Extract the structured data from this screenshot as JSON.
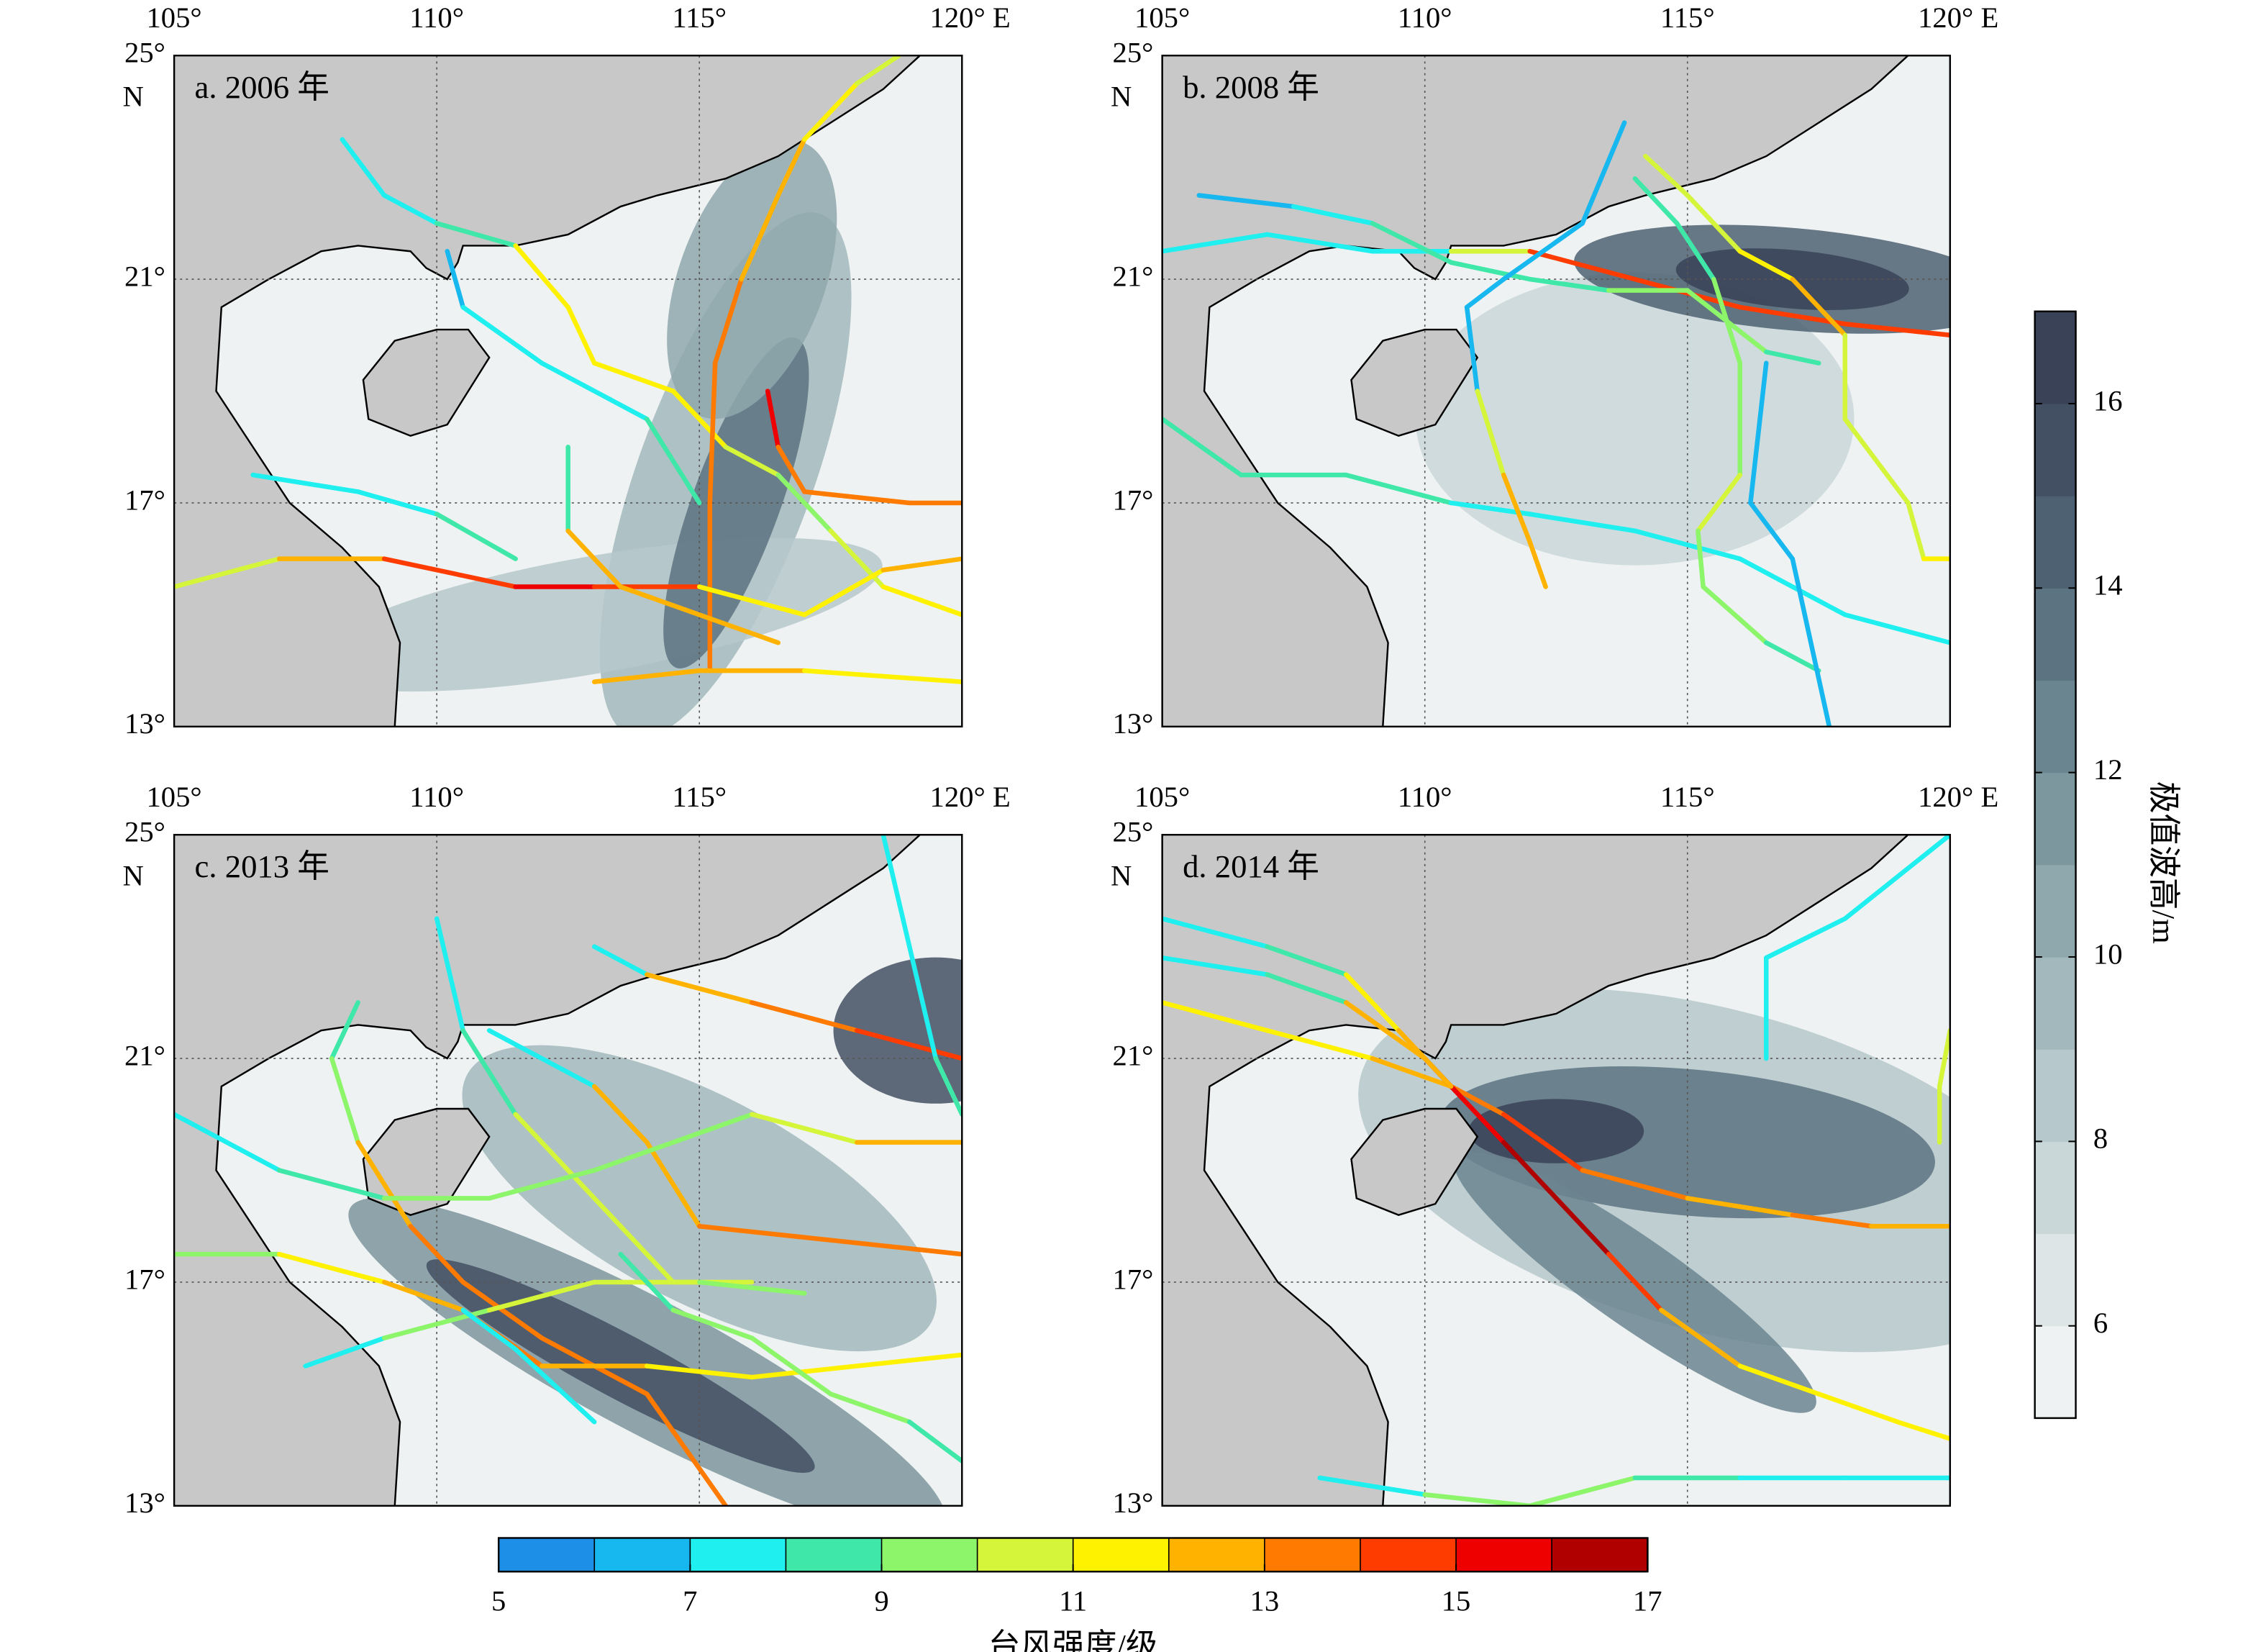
{
  "axes": {
    "xlim": [
      105,
      120
    ],
    "ylim": [
      13,
      25
    ],
    "xticks": [
      {
        "value": 105,
        "label": "105°"
      },
      {
        "value": 110,
        "label": "110°"
      },
      {
        "value": 115,
        "label": "115°"
      },
      {
        "value": 120,
        "label": "120° E"
      }
    ],
    "yticks": [
      {
        "value": 25,
        "label": "25°"
      },
      {
        "value": 21,
        "label": "21°"
      },
      {
        "value": 17,
        "label": "17°"
      },
      {
        "value": 13,
        "label": "13°"
      }
    ],
    "lat_hemisphere": "N",
    "grid": true
  },
  "panels": [
    {
      "label": "a. 2006 年",
      "tracks": [
        {
          "lon": [
            108.2,
            109,
            110,
            111.5,
            112.5,
            113,
            114.5,
            115.5,
            116.5,
            117.5,
            118.5,
            120
          ],
          "lat": [
            23.5,
            22.5,
            22,
            21.6,
            20.5,
            19.5,
            19,
            18,
            17.5,
            16.5,
            15.5,
            15
          ],
          "intensity": [
            7,
            7,
            8,
            11,
            11,
            11,
            11,
            10,
            9,
            10,
            11,
            12
          ]
        },
        {
          "lon": [
            110.2,
            110.5,
            112,
            114,
            115
          ],
          "lat": [
            21.5,
            20.5,
            19.5,
            18.5,
            17
          ],
          "intensity": [
            6,
            7,
            7,
            8,
            8
          ]
        },
        {
          "lon": [
            115.2,
            115.2,
            115.3,
            115.8,
            116.5,
            117,
            118,
            118.8
          ],
          "lat": [
            14,
            17,
            19.5,
            21,
            22.5,
            23.5,
            24.5,
            25
          ],
          "intensity": [
            13,
            13,
            13,
            12,
            12,
            11,
            10,
            9
          ]
        },
        {
          "lon": [
            105,
            107,
            109,
            111.5,
            113,
            115,
            117,
            118.5,
            120
          ],
          "lat": [
            15.5,
            16,
            16,
            15.5,
            15.5,
            15.5,
            15,
            15.8,
            16
          ],
          "intensity": [
            10,
            12,
            14,
            15,
            14,
            11,
            11,
            12,
            12
          ]
        },
        {
          "lon": [
            106.5,
            108.5,
            110,
            111.5
          ],
          "lat": [
            17.5,
            17.2,
            16.8,
            16
          ],
          "intensity": [
            7,
            7,
            8,
            8
          ]
        },
        {
          "lon": [
            116.3,
            116.5,
            117,
            119,
            120
          ],
          "lat": [
            19,
            18,
            17.2,
            17,
            17
          ],
          "intensity": [
            15,
            13,
            13,
            13,
            13
          ]
        },
        {
          "lon": [
            113,
            115,
            117,
            120
          ],
          "lat": [
            13.8,
            14,
            14,
            13.8
          ],
          "intensity": [
            12,
            12,
            11,
            11
          ]
        },
        {
          "lon": [
            112.5,
            112.5,
            113.5,
            115,
            116.5
          ],
          "lat": [
            18,
            16.5,
            15.5,
            15,
            14.5
          ],
          "intensity": [
            8,
            12,
            12,
            12,
            12
          ]
        }
      ]
    },
    {
      "label": "b. 2008 年",
      "tracks": [
        {
          "lon": [
            105,
            107,
            109,
            110.5,
            112,
            114,
            116,
            118,
            120
          ],
          "lat": [
            21.5,
            21.8,
            21.5,
            21.5,
            21.5,
            21,
            20.5,
            20.2,
            20
          ],
          "intensity": [
            7,
            7,
            7,
            10,
            14,
            14,
            14,
            14,
            14
          ]
        },
        {
          "lon": [
            105.7,
            107.5,
            109,
            110.5,
            112,
            113.5,
            115,
            116.5,
            117.5
          ],
          "lat": [
            22.5,
            22.3,
            22,
            21.3,
            21,
            20.8,
            20.8,
            19.7,
            19.5
          ],
          "intensity": [
            6,
            7,
            8,
            8,
            8,
            9,
            9,
            8,
            7
          ]
        },
        {
          "lon": [
            105,
            106.5,
            108.5,
            110.5,
            112,
            114,
            116,
            118,
            120
          ],
          "lat": [
            18.5,
            17.5,
            17.5,
            17,
            16.8,
            16.5,
            16,
            15,
            14.5
          ],
          "intensity": [
            8,
            8,
            8,
            7,
            7,
            7,
            7,
            7,
            7
          ]
        },
        {
          "lon": [
            113.8,
            113,
            111.5,
            110.8,
            111,
            111.5,
            112,
            112.3
          ],
          "lat": [
            23.8,
            22,
            21,
            20.5,
            19,
            17.5,
            16.3,
            15.5
          ],
          "intensity": [
            6,
            6,
            6,
            6,
            10,
            12,
            12,
            7
          ]
        },
        {
          "lon": [
            114,
            114.8,
            115.5,
            116,
            116,
            115.2,
            115.3,
            116.5,
            117.5
          ],
          "lat": [
            22.8,
            22,
            21,
            19.5,
            17.5,
            16.5,
            15.5,
            14.5,
            14
          ],
          "intensity": [
            8,
            8,
            9,
            9,
            10,
            9,
            9,
            8,
            8
          ]
        },
        {
          "lon": [
            114.2,
            115,
            116,
            117,
            118,
            118,
            119.2,
            119.5,
            120
          ],
          "lat": [
            23.2,
            22.5,
            21.5,
            21,
            20,
            18.5,
            17,
            16,
            16
          ],
          "intensity": [
            10,
            10,
            11,
            12,
            10,
            10,
            10,
            11,
            11
          ]
        },
        {
          "lon": [
            116.5,
            116.2,
            117,
            117.7
          ],
          "lat": [
            19.5,
            17,
            16,
            13
          ],
          "intensity": [
            6,
            6,
            6,
            6
          ]
        }
      ]
    },
    {
      "label": "c. 2013 年",
      "tracks": [
        {
          "lon": [
            113,
            114,
            116,
            118,
            120
          ],
          "lat": [
            23,
            22.5,
            22,
            21.5,
            21
          ],
          "intensity": [
            7,
            12,
            13,
            14,
            15
          ]
        },
        {
          "lon": [
            108.5,
            108,
            108.5,
            109.5,
            110.5,
            112,
            114,
            115.5
          ],
          "lat": [
            22,
            21,
            19.5,
            18,
            17,
            16,
            15,
            13
          ],
          "intensity": [
            8,
            9,
            12,
            13,
            13,
            13,
            13,
            13
          ]
        },
        {
          "lon": [
            111,
            113,
            114,
            115,
            117,
            120
          ],
          "lat": [
            21.5,
            20.5,
            19.5,
            18,
            17.8,
            17.5
          ],
          "intensity": [
            7,
            12,
            12,
            13,
            13,
            13
          ]
        },
        {
          "lon": [
            110,
            110.5,
            111.5,
            112.5,
            113.5,
            114.5,
            116
          ],
          "lat": [
            23.5,
            21.5,
            20,
            19,
            18,
            17,
            17
          ],
          "intensity": [
            7,
            8,
            10,
            10,
            10,
            10,
            8
          ]
        },
        {
          "lon": [
            105,
            107,
            109,
            111,
            113,
            114.5,
            116,
            118,
            120
          ],
          "lat": [
            20,
            19,
            18.5,
            18.5,
            19,
            19.5,
            20,
            19.5,
            19.5
          ],
          "intensity": [
            7,
            8,
            9,
            9,
            9,
            9,
            10,
            12,
            12
          ]
        },
        {
          "lon": [
            105,
            107,
            109,
            110.5,
            112,
            114,
            116,
            118,
            120
          ],
          "lat": [
            17.5,
            17.5,
            17,
            16.5,
            15.5,
            15.5,
            15.3,
            15.5,
            15.7
          ],
          "intensity": [
            9,
            11,
            12,
            13,
            12,
            11,
            11,
            11,
            11
          ]
        },
        {
          "lon": [
            107.5,
            109,
            111,
            113,
            115,
            117
          ],
          "lat": [
            15.5,
            16,
            16.5,
            17,
            17,
            16.8
          ],
          "intensity": [
            7,
            9,
            10,
            10,
            9,
            8
          ]
        },
        {
          "lon": [
            110.5,
            111.5,
            113
          ],
          "lat": [
            16.5,
            15.8,
            14.5
          ],
          "intensity": [
            7,
            7,
            7
          ]
        },
        {
          "lon": [
            113.5,
            114.5,
            116,
            117.5,
            119,
            120
          ],
          "lat": [
            17.5,
            16.5,
            16,
            15,
            14.5,
            13.8
          ],
          "intensity": [
            8,
            9,
            9,
            9,
            8,
            8
          ]
        },
        {
          "lon": [
            118.5,
            119,
            119.5,
            120
          ],
          "lat": [
            25,
            23,
            21,
            20
          ],
          "intensity": [
            7,
            7,
            8,
            8
          ]
        }
      ]
    },
    {
      "label": "d. 2014 年",
      "tracks": [
        {
          "lon": [
            105,
            107,
            109,
            110.5,
            111.5,
            113,
            115,
            117,
            118.5,
            120
          ],
          "lat": [
            22,
            21.5,
            21,
            20.5,
            20,
            19,
            18.5,
            18.2,
            18,
            18
          ],
          "intensity": [
            11,
            11,
            12,
            13,
            14,
            13,
            12,
            13,
            12,
            11
          ]
        },
        {
          "lon": [
            105,
            107,
            108.5,
            110,
            111.5,
            112.5,
            113.5,
            114.5,
            116,
            117.5,
            119,
            120
          ],
          "lat": [
            22.8,
            22.5,
            22,
            21,
            19.5,
            18.5,
            17.5,
            16.5,
            15.5,
            15,
            14.5,
            14.2
          ],
          "intensity": [
            7,
            8,
            12,
            15,
            16,
            16,
            14,
            12,
            11,
            11,
            11,
            11
          ]
        },
        {
          "lon": [
            105,
            107,
            108.5,
            109.5,
            110.5
          ],
          "lat": [
            23.5,
            23,
            22.5,
            21.5,
            20.5
          ],
          "intensity": [
            7,
            8,
            11,
            12,
            12
          ]
        },
        {
          "lon": [
            120,
            118,
            116.5,
            116.5
          ],
          "lat": [
            25,
            23.5,
            22.8,
            21
          ],
          "intensity": [
            7,
            7,
            7,
            9
          ]
        },
        {
          "lon": [
            108,
            110,
            112,
            114,
            116,
            118,
            120
          ],
          "lat": [
            13.5,
            13.2,
            13,
            13.5,
            13.5,
            13.5,
            13.5
          ],
          "intensity": [
            7,
            9,
            9,
            8,
            7,
            7,
            7
          ]
        },
        {
          "lon": [
            120,
            119.8,
            119.8
          ],
          "lat": [
            21.5,
            20.5,
            19.5
          ],
          "intensity": [
            10,
            10,
            9
          ]
        }
      ]
    }
  ],
  "intensity_colorbar": {
    "title": "台风强度/级",
    "range": [
      5,
      17
    ],
    "ticks": [
      5,
      7,
      9,
      11,
      13,
      15,
      17
    ],
    "colors": [
      "#1e8fe6",
      "#17b8ef",
      "#1ff0ef",
      "#3fe8a8",
      "#8cf56a",
      "#d4f53a",
      "#fff200",
      "#ffb300",
      "#ff7a00",
      "#ff3c00",
      "#ee0000",
      "#b00000"
    ]
  },
  "wave_colorbar": {
    "title": "极值波高/m",
    "range": [
      5,
      17
    ],
    "ticks": [
      6,
      8,
      10,
      12,
      14,
      16
    ],
    "colors": [
      "#eef2f2",
      "#dde5e6",
      "#cad7d9",
      "#b6c8cb",
      "#a2b8bc",
      "#8fa8ad",
      "#7d979e",
      "#6b8590",
      "#5c7381",
      "#4e6172",
      "#435064",
      "#3a4258"
    ]
  }
}
